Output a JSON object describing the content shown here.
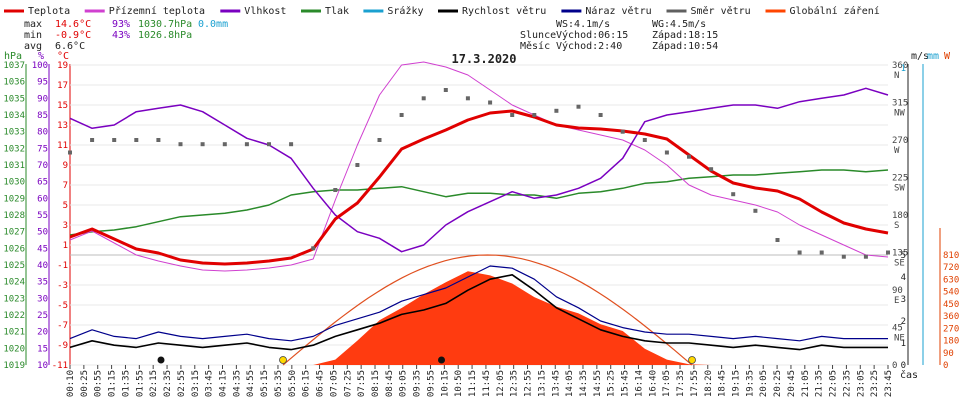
{
  "chart_data": {
    "type": "line",
    "title": "17.3.2020",
    "legend": [
      {
        "name": "Teplota",
        "color": "#e00000"
      },
      {
        "name": "Přízemní teplota",
        "color": "#d040d0"
      },
      {
        "name": "Vlhkost",
        "color": "#7a00c0"
      },
      {
        "name": "Tlak",
        "color": "#2a8a2a"
      },
      {
        "name": "Srážky",
        "color": "#1aa0d0"
      },
      {
        "name": "Rychlost větru",
        "color": "#000000"
      },
      {
        "name": "Náraz větru",
        "color": "#00008b"
      },
      {
        "name": "Směr větru",
        "color": "#606060"
      },
      {
        "name": "Globální záření",
        "color": "#ff4500"
      }
    ],
    "stats": {
      "max": {
        "label": "max",
        "temp": "14.6°C",
        "hum": "93%",
        "press": "1030.7hPa",
        "rain": "0.0mm"
      },
      "min": {
        "label": "min",
        "temp": "-0.9°C",
        "hum": "43%",
        "press": "1026.8hPa"
      },
      "avg": {
        "label": "avg",
        "temp": "6.6°C"
      }
    },
    "info": {
      "ws": "WS:4.1m/s",
      "wg": "WG:4.5m/s",
      "sun_label": "Slunce",
      "sun_rise": "Východ:06:15",
      "sun_set": "Západ:18:15",
      "moon_label": "Měsíc",
      "moon_rise": "Východ:2:40",
      "moon_set": "Západ:10:54"
    },
    "axis_units": {
      "hpa": "hPa",
      "pct": "%",
      "degc": "°C",
      "ms": "m/s",
      "mm": "mm",
      "w": "W",
      "time": "čas"
    },
    "y_axes": {
      "hpa": [
        1037,
        1036,
        1035,
        1034,
        1033,
        1032,
        1031,
        1030,
        1029,
        1028,
        1027,
        1026,
        1025,
        1024,
        1023,
        1022,
        1021,
        1020,
        1019
      ],
      "pct": [
        100,
        95,
        90,
        85,
        80,
        75,
        70,
        65,
        60,
        55,
        50,
        45,
        40,
        35,
        30,
        25,
        20,
        15,
        10
      ],
      "degc": [
        19,
        17,
        15,
        13,
        11,
        9,
        7,
        5,
        3,
        1,
        -1,
        -3,
        -5,
        -7,
        -9,
        -11
      ],
      "dir_deg": [
        360,
        315,
        270,
        225,
        180,
        135,
        90,
        45,
        0
      ],
      "dir_label": [
        "N",
        "NW",
        "W",
        "SW",
        "S",
        "SE",
        "E",
        "NE"
      ],
      "ms": [
        1,
        5,
        4,
        3,
        2,
        1,
        0
      ],
      "w": [
        810,
        720,
        630,
        540,
        450,
        360,
        270,
        180,
        90,
        0
      ]
    },
    "x_ticks": [
      "00:10",
      "00:25",
      "00:55",
      "01:15",
      "01:35",
      "01:55",
      "02:15",
      "02:35",
      "02:55",
      "03:15",
      "03:45",
      "04:15",
      "04:35",
      "04:55",
      "05:15",
      "05:35",
      "05:50",
      "06:15",
      "06:45",
      "07:05",
      "07:25",
      "07:55",
      "08:15",
      "08:45",
      "09:05",
      "09:35",
      "09:55",
      "10:15",
      "10:50",
      "11:15",
      "11:45",
      "12:05",
      "12:35",
      "12:55",
      "13:15",
      "13:45",
      "14:05",
      "14:35",
      "14:55",
      "15:25",
      "15:45",
      "16:14",
      "16:40",
      "17:05",
      "17:35",
      "17:55",
      "18:20",
      "18:45",
      "19:15",
      "19:35",
      "20:05",
      "20:25",
      "20:45",
      "21:05",
      "21:35",
      "22:05",
      "22:35",
      "23:05",
      "23:25",
      "23:45"
    ],
    "temperature_hourly": [
      1.8,
      2.6,
      1.6,
      0.6,
      0.2,
      -0.5,
      -0.8,
      -0.9,
      -0.8,
      -0.6,
      -0.3,
      0.6,
      3.6,
      5.2,
      7.8,
      10.6,
      11.6,
      12.5,
      13.5,
      14.2,
      14.4,
      13.8,
      13.0,
      12.7,
      12.6,
      12.4,
      12.1,
      11.6,
      10.0,
      8.4,
      7.2,
      6.7,
      6.4,
      5.6,
      4.3,
      3.2,
      2.6,
      2.2
    ],
    "humidity_hourly": [
      84,
      81,
      82,
      86,
      87,
      88,
      86,
      82,
      78,
      76,
      72,
      63,
      55,
      50,
      48,
      44,
      46,
      52,
      56,
      59,
      62,
      60,
      61,
      63,
      66,
      72,
      83,
      85,
      86,
      87,
      88,
      88,
      87,
      89,
      90,
      91,
      93,
      91
    ],
    "pressure_hourly": [
      1026.8,
      1027.0,
      1027.1,
      1027.3,
      1027.6,
      1027.9,
      1028.0,
      1028.1,
      1028.3,
      1028.6,
      1029.2,
      1029.4,
      1029.5,
      1029.5,
      1029.6,
      1029.7,
      1029.4,
      1029.1,
      1029.3,
      1029.3,
      1029.2,
      1029.2,
      1029.0,
      1029.3,
      1029.4,
      1029.6,
      1029.9,
      1030.0,
      1030.2,
      1030.3,
      1030.4,
      1030.4,
      1030.5,
      1030.6,
      1030.7,
      1030.7,
      1030.6,
      1030.7
    ],
    "ground_temp_hourly": [
      1.5,
      2.4,
      1.2,
      0.0,
      -0.6,
      -1.1,
      -1.5,
      -1.6,
      -1.5,
      -1.3,
      -1.0,
      -0.4,
      5.5,
      11.0,
      16.0,
      19.0,
      19.3,
      18.8,
      18.0,
      16.5,
      15.0,
      14.0,
      13.0,
      12.5,
      12.0,
      11.5,
      10.5,
      9.0,
      7.0,
      6.0,
      5.5,
      5.0,
      4.3,
      3.0,
      2.0,
      1.0,
      0.0,
      -0.2
    ],
    "global_radiation_hourly": [
      0,
      0,
      0,
      0,
      0,
      0,
      0,
      0,
      0,
      0,
      0,
      0,
      40,
      180,
      330,
      420,
      520,
      610,
      690,
      660,
      600,
      500,
      430,
      380,
      300,
      250,
      120,
      40,
      5,
      0,
      0,
      0,
      0,
      0,
      0,
      0,
      0,
      0
    ],
    "wind_speed_hourly": [
      0.8,
      1.1,
      0.9,
      0.8,
      1.0,
      0.9,
      0.8,
      0.9,
      1.0,
      0.8,
      0.7,
      0.9,
      1.3,
      1.6,
      1.9,
      2.3,
      2.5,
      2.8,
      3.4,
      3.9,
      4.1,
      3.4,
      2.6,
      2.1,
      1.6,
      1.3,
      1.1,
      1.0,
      1.0,
      0.9,
      0.8,
      0.9,
      0.8,
      0.7,
      0.9,
      0.8,
      0.8,
      0.8
    ],
    "wind_gust_hourly": [
      1.2,
      1.6,
      1.3,
      1.2,
      1.5,
      1.3,
      1.2,
      1.3,
      1.4,
      1.2,
      1.1,
      1.3,
      1.8,
      2.1,
      2.4,
      2.9,
      3.2,
      3.5,
      4.0,
      4.5,
      4.4,
      3.9,
      3.1,
      2.6,
      2.0,
      1.7,
      1.5,
      1.4,
      1.4,
      1.3,
      1.2,
      1.3,
      1.2,
      1.1,
      1.3,
      1.2,
      1.2,
      1.2
    ],
    "wind_direction_hourly": [
      255,
      270,
      270,
      270,
      270,
      265,
      265,
      265,
      265,
      265,
      265,
      140,
      210,
      240,
      270,
      300,
      320,
      330,
      320,
      315,
      300,
      300,
      305,
      310,
      300,
      280,
      270,
      255,
      250,
      235,
      205,
      185,
      150,
      135,
      135,
      130,
      130,
      135
    ],
    "sun_mark_times": [
      6.25,
      18.25
    ],
    "moon_mark_times": [
      2.67,
      10.9
    ]
  }
}
